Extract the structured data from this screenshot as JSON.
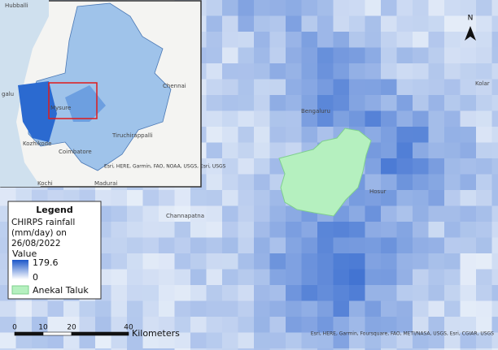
{
  "north_arrow": "N",
  "main_map": {
    "places": [
      "Kolar",
      "Bengaluru",
      "Channapatna",
      "Hosur"
    ],
    "attribution": "Esri, HERE, Garmin, Foursquare, FAO, METI/NASA, USGS, Esri, CGIAR, USGS"
  },
  "inset_map": {
    "places": [
      "Hubballi",
      "Chennai",
      "galu",
      "Mysure",
      "Kozhikode",
      "Coimbatore",
      "Tiruchirappalli",
      "Kochi",
      "Madurai"
    ],
    "attribution": "Esri, HERE, Garmin, FAO, NOAA, USGS, Esri, USGS"
  },
  "legend": {
    "title": "Legend",
    "layer": "CHIRPS rainfall (mm/day) on 26/08/2022",
    "field": "Value",
    "value_max": 179.6,
    "value_min": 0,
    "boundary": "Anekal Taluk"
  },
  "scale_bar": {
    "ticks": [
      0,
      10,
      20,
      40
    ],
    "unit": "Kilometers"
  }
}
